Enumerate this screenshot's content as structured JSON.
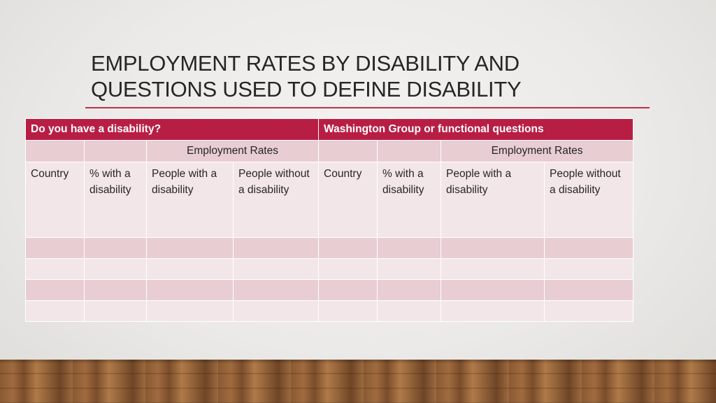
{
  "slide": {
    "title_line1": "EMPLOYMENT RATES BY DISABILITY AND",
    "title_line2": "QUESTIONS USED TO DEFINE DISABILITY"
  },
  "table": {
    "header_left": "Do you have a disability?",
    "header_right": "Washington Group or functional questions",
    "subheader_left": "Employment Rates",
    "subheader_right": "Employment Rates",
    "columns_left": [
      "Country",
      "% with a disability",
      "People with a disability",
      "People without a disability"
    ],
    "columns_right": [
      "Country",
      "% with a disability",
      "People with a disability",
      "People without a disability"
    ]
  },
  "colors": {
    "accent": "#b81e44",
    "row_dark": "#e8cdd3",
    "row_light": "#f3e6e9",
    "rule": "#c0304a"
  }
}
